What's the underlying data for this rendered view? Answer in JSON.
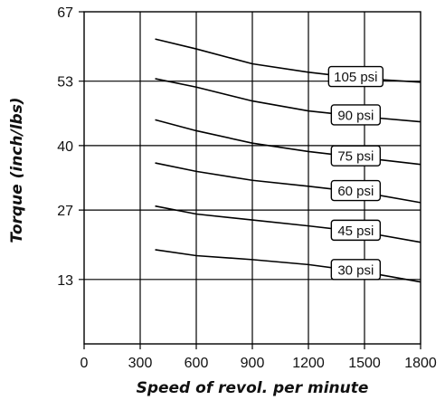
{
  "chart_data": {
    "type": "line",
    "title": "",
    "xlabel": "Speed of revol. per minute",
    "ylabel": "Torque (inch/lbs)",
    "xlim": [
      0,
      1800
    ],
    "ylim": [
      0,
      67
    ],
    "x_ticks": [
      0,
      300,
      600,
      900,
      1200,
      1500,
      1800
    ],
    "y_ticks": [
      13,
      27,
      40,
      53,
      67
    ],
    "grid": true,
    "x": [
      380,
      600,
      900,
      1200,
      1500,
      1800
    ],
    "series": [
      {
        "name": "105 psi",
        "values": [
          61.5,
          59.5,
          56.5,
          54.8,
          53.5,
          52.8
        ]
      },
      {
        "name": "90 psi",
        "values": [
          53.5,
          51.8,
          49.0,
          47.0,
          45.8,
          44.8
        ]
      },
      {
        "name": "75 psi",
        "values": [
          45.2,
          43.0,
          40.5,
          38.8,
          37.5,
          36.2
        ]
      },
      {
        "name": "60 psi",
        "values": [
          36.5,
          34.8,
          33.0,
          31.8,
          30.5,
          28.5
        ]
      },
      {
        "name": "45 psi",
        "values": [
          27.8,
          26.2,
          25.0,
          23.8,
          22.5,
          20.5
        ]
      },
      {
        "name": "30 psi",
        "values": [
          19.0,
          17.8,
          17.0,
          16.0,
          14.5,
          12.5
        ]
      }
    ]
  }
}
